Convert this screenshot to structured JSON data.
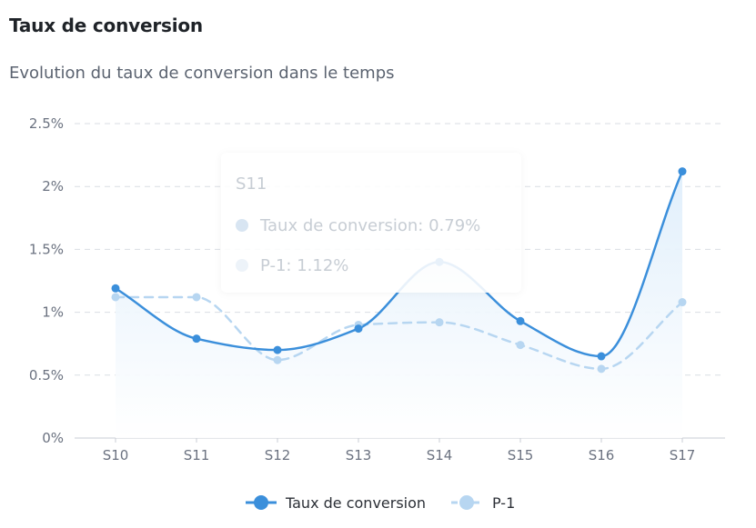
{
  "header": {
    "title": "Taux de conversion",
    "subtitle": "Evolution du taux de conversion dans le temps"
  },
  "tooltip": {
    "title": "S11",
    "line1": "Taux de conversion: 0.79%",
    "line2": "P-1: 1.12%"
  },
  "colors": {
    "series_main": "#3b8fdb",
    "series_prev": "#b7d6f1",
    "area_top": "#e3eefb",
    "grid": "#d9dde3"
  },
  "chart_data": {
    "type": "line",
    "title": "Taux de conversion",
    "subtitle": "Evolution du taux de conversion dans le temps",
    "categories": [
      "S10",
      "S11",
      "S12",
      "S13",
      "S14",
      "S15",
      "S16",
      "S17"
    ],
    "y_ticks": [
      "0%",
      "0.5%",
      "1%",
      "1.5%",
      "2%",
      "2.5%"
    ],
    "ylim": [
      0,
      2.5
    ],
    "grid": true,
    "legend_position": "bottom",
    "series": [
      {
        "name": "Taux de conversion",
        "values": [
          1.19,
          0.79,
          0.7,
          0.87,
          1.4,
          0.93,
          0.65,
          2.12
        ],
        "style": "solid-area"
      },
      {
        "name": "P-1",
        "values": [
          1.12,
          1.12,
          0.62,
          0.9,
          0.92,
          0.74,
          0.55,
          1.08
        ],
        "style": "dashed"
      }
    ]
  }
}
